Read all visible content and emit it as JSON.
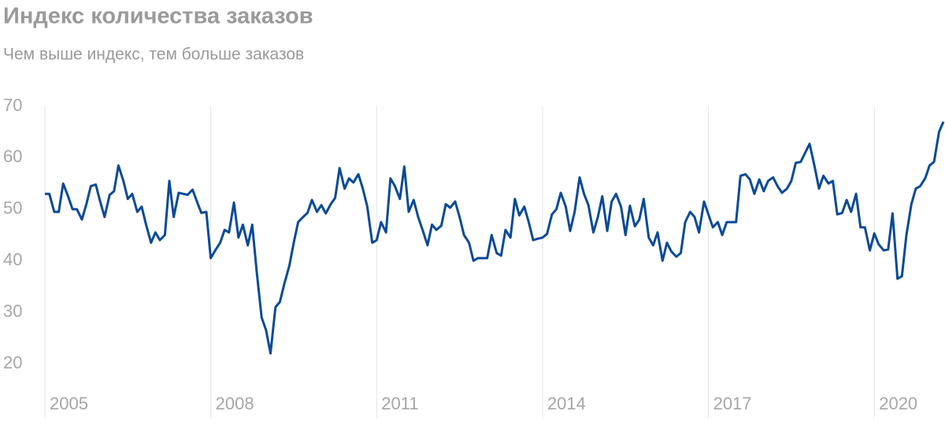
{
  "chart_data": {
    "type": "line",
    "title": "Индекс количества заказов",
    "subtitle": "Чем выше индекс, тем больше заказов",
    "series": [
      {
        "color": "#0b4a96",
        "values": [
          53,
          53,
          49.5,
          49.5,
          55,
          52.5,
          50,
          50,
          48,
          51,
          54.5,
          54.8,
          51.5,
          48.5,
          52.8,
          53.5,
          58.5,
          55.5,
          52,
          53,
          49.5,
          50.5,
          47,
          43.5,
          45.5,
          44,
          45,
          55.5,
          48.5,
          53.2,
          53,
          52.8,
          53.8,
          51.5,
          49.3,
          49.5,
          40.5,
          42,
          43.5,
          46,
          45.5,
          51.3,
          44.5,
          47,
          43,
          47,
          38,
          29,
          26.5,
          22,
          31,
          32,
          35.5,
          39,
          43.5,
          47.5,
          48.5,
          49.3,
          51.8,
          49.5,
          50.8,
          49.2,
          51,
          52.2,
          58,
          54,
          56,
          55.2,
          56.8,
          54,
          50.5,
          43.5,
          44,
          47.5,
          45.5,
          56,
          54.5,
          52,
          58.3,
          49.5,
          51.8,
          48.5,
          46,
          43,
          47,
          46,
          46.8,
          51,
          50.3,
          51.5,
          48.5,
          45,
          43.5,
          40,
          40.5,
          40.5,
          40.5,
          45,
          41.5,
          41,
          46,
          44.5,
          52,
          48.8,
          50.5,
          47.5,
          44,
          44.3,
          44.5,
          45.2,
          49,
          50,
          53.2,
          50.5,
          45.8,
          49.5,
          56.2,
          53,
          50.8,
          45.5,
          48.5,
          52.5,
          45.8,
          51.5,
          53,
          50.5,
          45,
          50.7,
          46.7,
          48,
          52,
          44.5,
          43,
          45.5,
          40,
          43.5,
          41.8,
          40.8,
          41.5,
          47.5,
          49.5,
          48.5,
          45.5,
          51.5,
          49,
          46.5,
          47.5,
          45,
          47.5,
          47.5,
          47.5,
          56.5,
          56.8,
          55.8,
          53,
          55.8,
          53.5,
          55.5,
          56.2,
          54.5,
          53.2,
          54,
          55.5,
          59,
          59.2,
          61,
          62.7,
          58.3,
          54,
          56.5,
          55,
          55.5,
          49,
          49.3,
          51.8,
          49.5,
          53,
          46.5,
          46.5,
          42,
          45.3,
          43.2,
          42,
          42.2,
          49.2,
          36.5,
          37,
          45,
          51,
          54,
          54.5,
          56,
          58.5,
          59.2,
          65,
          67
        ]
      }
    ],
    "x": [
      2005,
      2005.08,
      2005.17,
      2005.25,
      2005.33,
      2005.42,
      2005.5,
      2005.58,
      2005.67,
      2005.75,
      2005.83,
      2005.92,
      2006,
      2006.08,
      2006.17,
      2006.25,
      2006.33,
      2006.42,
      2006.5,
      2006.58,
      2006.67,
      2006.75,
      2006.83,
      2006.92,
      2007,
      2007.08,
      2007.17,
      2007.25,
      2007.33,
      2007.42,
      2007.5,
      2007.58,
      2007.67,
      2007.75,
      2007.83,
      2007.92,
      2008,
      2008.08,
      2008.17,
      2008.25,
      2008.33,
      2008.42,
      2008.5,
      2008.58,
      2008.67,
      2008.75,
      2008.83,
      2008.92,
      2009,
      2009.08,
      2009.17,
      2009.25,
      2009.33,
      2009.42,
      2009.5,
      2009.58,
      2009.67,
      2009.75,
      2009.83,
      2009.92,
      2010,
      2010.08,
      2010.17,
      2010.25,
      2010.33,
      2010.42,
      2010.5,
      2010.58,
      2010.67,
      2010.75,
      2010.83,
      2010.92,
      2011,
      2011.08,
      2011.17,
      2011.25,
      2011.33,
      2011.42,
      2011.5,
      2011.58,
      2011.67,
      2011.75,
      2011.83,
      2011.92,
      2012,
      2012.08,
      2012.17,
      2012.25,
      2012.33,
      2012.42,
      2012.5,
      2012.58,
      2012.67,
      2012.75,
      2012.83,
      2012.92,
      2013,
      2013.08,
      2013.17,
      2013.25,
      2013.33,
      2013.42,
      2013.5,
      2013.58,
      2013.67,
      2013.75,
      2013.83,
      2013.92,
      2014,
      2014.08,
      2014.17,
      2014.25,
      2014.33,
      2014.42,
      2014.5,
      2014.58,
      2014.67,
      2014.75,
      2014.83,
      2014.92,
      2015,
      2015.08,
      2015.17,
      2015.25,
      2015.33,
      2015.42,
      2015.5,
      2015.58,
      2015.67,
      2015.75,
      2015.83,
      2015.92,
      2016,
      2016.08,
      2016.17,
      2016.25,
      2016.33,
      2016.42,
      2016.5,
      2016.58,
      2016.67,
      2016.75,
      2016.83,
      2016.92,
      2017,
      2017.08,
      2017.17,
      2017.25,
      2017.33,
      2017.42,
      2017.5,
      2017.58,
      2017.67,
      2017.75,
      2017.83,
      2017.92,
      2018,
      2018.08,
      2018.17,
      2018.25,
      2018.33,
      2018.42,
      2018.5,
      2018.58,
      2018.67,
      2018.75,
      2018.83,
      2018.92,
      2019,
      2019.08,
      2019.17,
      2019.25,
      2019.33,
      2019.42,
      2019.5,
      2019.58,
      2019.67,
      2019.75,
      2019.83,
      2019.92,
      2020,
      2020.08,
      2020.17,
      2020.25,
      2020.33,
      2020.42,
      2020.5,
      2020.58,
      2020.67,
      2020.75,
      2020.83,
      2020.92,
      2021,
      2021.08,
      2021.17,
      2021.25
    ],
    "xlim": [
      2005,
      2021.25
    ],
    "xticks": [
      2005,
      2008,
      2011,
      2014,
      2017,
      2020
    ],
    "ylim": [
      20,
      70
    ],
    "yticks": [
      20,
      30,
      40,
      50,
      60,
      70
    ],
    "grid": true
  }
}
